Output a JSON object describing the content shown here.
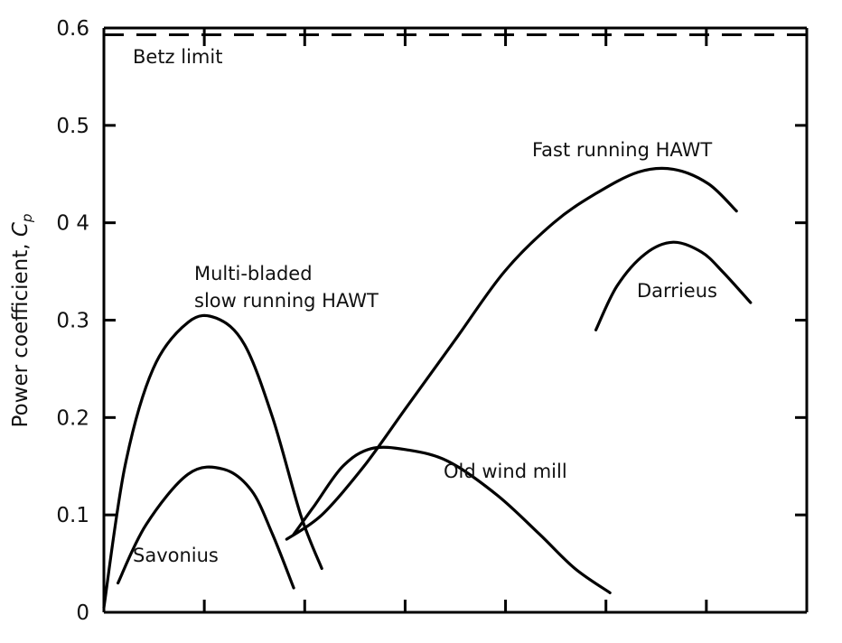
{
  "chart_data": {
    "type": "line",
    "ylabel": "Power coefficient, Cp",
    "ylabel_main": "Power coefficient, ",
    "ylabel_symbol": "C",
    "ylabel_sub": "p",
    "ylim": [
      0,
      0.6
    ],
    "xlim": [
      0,
      1
    ],
    "x_tick_labels_shown": false,
    "yticks": [
      "0",
      "0.1",
      "0.2",
      "0.3",
      "0 4",
      "0.5",
      "0.6"
    ],
    "reference_line": {
      "name": "Betz limit",
      "y": 0.593,
      "style": "dashed"
    },
    "series": [
      {
        "name": "Savonius",
        "x": [
          0.02,
          0.06,
          0.12,
          0.17,
          0.21,
          0.24,
          0.27
        ],
        "y": [
          0.03,
          0.09,
          0.142,
          0.147,
          0.125,
          0.08,
          0.025
        ]
      },
      {
        "name": "Multi-bladed slow running HAWT",
        "x": [
          0.0,
          0.03,
          0.07,
          0.12,
          0.16,
          0.2,
          0.24,
          0.28,
          0.31
        ],
        "y": [
          0.005,
          0.15,
          0.25,
          0.298,
          0.302,
          0.275,
          0.2,
          0.1,
          0.045
        ]
      },
      {
        "name": "Old wind mill",
        "x": [
          0.27,
          0.3,
          0.34,
          0.38,
          0.43,
          0.49,
          0.56,
          0.62,
          0.67,
          0.72
        ],
        "y": [
          0.08,
          0.11,
          0.15,
          0.168,
          0.167,
          0.155,
          0.12,
          0.08,
          0.045,
          0.02
        ]
      },
      {
        "name": "Fast running HAWT",
        "x": [
          0.26,
          0.31,
          0.37,
          0.43,
          0.5,
          0.57,
          0.64,
          0.7,
          0.76,
          0.81,
          0.86,
          0.9
        ],
        "y": [
          0.075,
          0.1,
          0.15,
          0.21,
          0.28,
          0.35,
          0.4,
          0.43,
          0.452,
          0.455,
          0.44,
          0.412
        ]
      },
      {
        "name": "Darrieus",
        "x": [
          0.7,
          0.73,
          0.77,
          0.81,
          0.85,
          0.88,
          0.92
        ],
        "y": [
          0.29,
          0.335,
          0.368,
          0.38,
          0.37,
          0.35,
          0.318
        ]
      }
    ],
    "annotations": {
      "betz": "Betz limit",
      "multi1": "Multi-bladed",
      "multi2": "slow running HAWT",
      "fast": "Fast running HAWT",
      "darrieus": "Darrieus",
      "oldmill": "Old wind mill",
      "savonius": "Savonius"
    },
    "grid": false
  }
}
